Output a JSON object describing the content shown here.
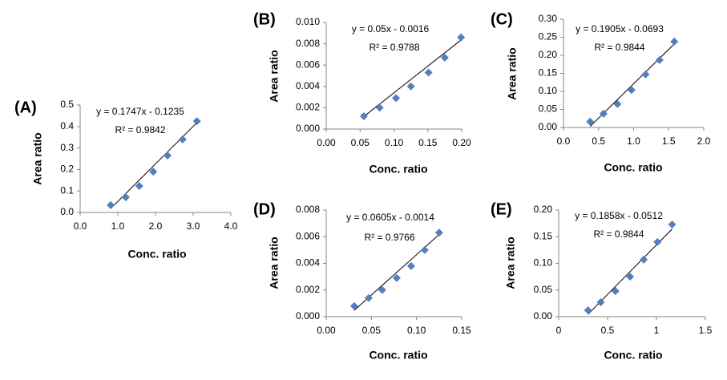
{
  "chart_data": [
    {
      "type": "scatter",
      "panel_label": "(A)",
      "equation": "y = 0.1747x - 0.1235",
      "r_squared": "R² = 0.9842",
      "x_label": "Conc. ratio",
      "y_label": "Area ratio",
      "color": "#4f81bd",
      "x": [
        0.81,
        1.21,
        1.57,
        1.94,
        2.32,
        2.72,
        3.1
      ],
      "values": [
        0.034,
        0.071,
        0.123,
        0.19,
        0.265,
        0.34,
        0.425
      ],
      "trendline": {
        "slope": 0.1747,
        "intercept": -0.1235
      },
      "xlim": [
        0,
        4
      ],
      "ylim": [
        0,
        0.5
      ],
      "xticks": [
        {
          "value": 0,
          "label": "0.0"
        },
        {
          "value": 1,
          "label": "1.0"
        },
        {
          "value": 2,
          "label": "2.0"
        },
        {
          "value": 3,
          "label": "3.0"
        },
        {
          "value": 4,
          "label": "4.0"
        }
      ],
      "yticks": [
        {
          "value": 0,
          "label": "0.0"
        },
        0.1,
        0.2,
        0.3,
        0.4,
        0.5
      ]
    },
    {
      "type": "scatter",
      "panel_label": "(B)",
      "equation": "y = 0.05x - 0.0016",
      "r_squared": "R² = 0.9788",
      "x_label": "Conc. ratio",
      "y_label": "Area ratio",
      "color": "#4f81bd",
      "x": [
        0.0556,
        0.079,
        0.103,
        0.125,
        0.151,
        0.175,
        0.199
      ],
      "values": [
        0.0012,
        0.002,
        0.0029,
        0.004,
        0.0053,
        0.0067,
        0.0086
      ],
      "trendline": {
        "slope": 0.05,
        "intercept": -0.0016
      },
      "xlim": [
        0,
        0.2
      ],
      "ylim": [
        0,
        0.01
      ],
      "xticks": [
        {
          "value": 0,
          "label": "0.00"
        },
        {
          "value": 0.05,
          "label": "0.05"
        },
        {
          "value": 0.1,
          "label": "0.10"
        },
        {
          "value": 0.15,
          "label": "0.15"
        },
        {
          "value": 0.2,
          "label": "0.20"
        }
      ],
      "yticks": [
        {
          "value": 0,
          "label": "0.000"
        },
        {
          "value": 0.002,
          "label": "0.002"
        },
        {
          "value": 0.004,
          "label": "0.004"
        },
        {
          "value": 0.006,
          "label": "0.006"
        },
        {
          "value": 0.008,
          "label": "0.008"
        },
        {
          "value": 0.01,
          "label": "0.010"
        }
      ]
    },
    {
      "type": "scatter",
      "panel_label": "(C)",
      "equation": "y = 0.1905x - 0.0693",
      "r_squared": "R² = 0.9844",
      "x_label": "Conc. ratio",
      "y_label": "Area ratio",
      "color": "#4f81bd",
      "x": [
        0.38,
        0.57,
        0.77,
        0.97,
        1.17,
        1.37,
        1.58
      ],
      "values": [
        0.016,
        0.038,
        0.065,
        0.104,
        0.147,
        0.187,
        0.238
      ],
      "trendline": {
        "slope": 0.1905,
        "intercept": -0.0693
      },
      "xlim": [
        0,
        2
      ],
      "ylim": [
        0,
        0.3
      ],
      "xticks": [
        {
          "value": 0,
          "label": "0.0"
        },
        0.5,
        {
          "value": 1,
          "label": "1.0"
        },
        1.5,
        {
          "value": 2,
          "label": "2.0"
        }
      ],
      "yticks": [
        {
          "value": 0,
          "label": "0.00"
        },
        0.05,
        {
          "value": 0.1,
          "label": "0.10"
        },
        0.15,
        {
          "value": 0.2,
          "label": "0.20"
        },
        0.25,
        {
          "value": 0.3,
          "label": "0.30"
        }
      ]
    },
    {
      "type": "scatter",
      "panel_label": "(D)",
      "equation": "y = 0.0605x - 0.0014",
      "r_squared": "R² = 0.9766",
      "x_label": "Conc. ratio",
      "y_label": "Area ratio",
      "color": "#4f81bd",
      "x": [
        0.031,
        0.047,
        0.062,
        0.078,
        0.094,
        0.109,
        0.125
      ],
      "values": [
        0.0008,
        0.0014,
        0.002,
        0.0029,
        0.0038,
        0.005,
        0.0063
      ],
      "trendline": {
        "slope": 0.0605,
        "intercept": -0.0014
      },
      "xlim": [
        0,
        0.15
      ],
      "ylim": [
        0,
        0.008
      ],
      "xticks": [
        {
          "value": 0,
          "label": "0.00"
        },
        0.05,
        {
          "value": 0.1,
          "label": "0.10"
        },
        0.15
      ],
      "yticks": [
        {
          "value": 0,
          "label": "0.000"
        },
        {
          "value": 0.002,
          "label": "0.002"
        },
        {
          "value": 0.004,
          "label": "0.004"
        },
        {
          "value": 0.006,
          "label": "0.006"
        },
        {
          "value": 0.008,
          "label": "0.008"
        }
      ]
    },
    {
      "type": "scatter",
      "panel_label": "(E)",
      "equation": "y = 0.1858x - 0.0512",
      "r_squared": "R² = 0.9844",
      "x_label": "Conc. ratio",
      "y_label": "Area ratio",
      "color": "#4f81bd",
      "x": [
        0.3,
        0.43,
        0.58,
        0.73,
        0.87,
        1.01,
        1.16
      ],
      "values": [
        0.012,
        0.027,
        0.048,
        0.075,
        0.107,
        0.14,
        0.173
      ],
      "trendline": {
        "slope": 0.1858,
        "intercept": -0.0512
      },
      "xlim": [
        0,
        1.5
      ],
      "ylim": [
        0,
        0.2
      ],
      "xticks": [
        0,
        0.5,
        1,
        1.5
      ],
      "yticks": [
        {
          "value": 0,
          "label": "0.00"
        },
        0.05,
        {
          "value": 0.1,
          "label": "0.10"
        },
        0.15,
        {
          "value": 0.2,
          "label": "0.20"
        }
      ]
    }
  ]
}
